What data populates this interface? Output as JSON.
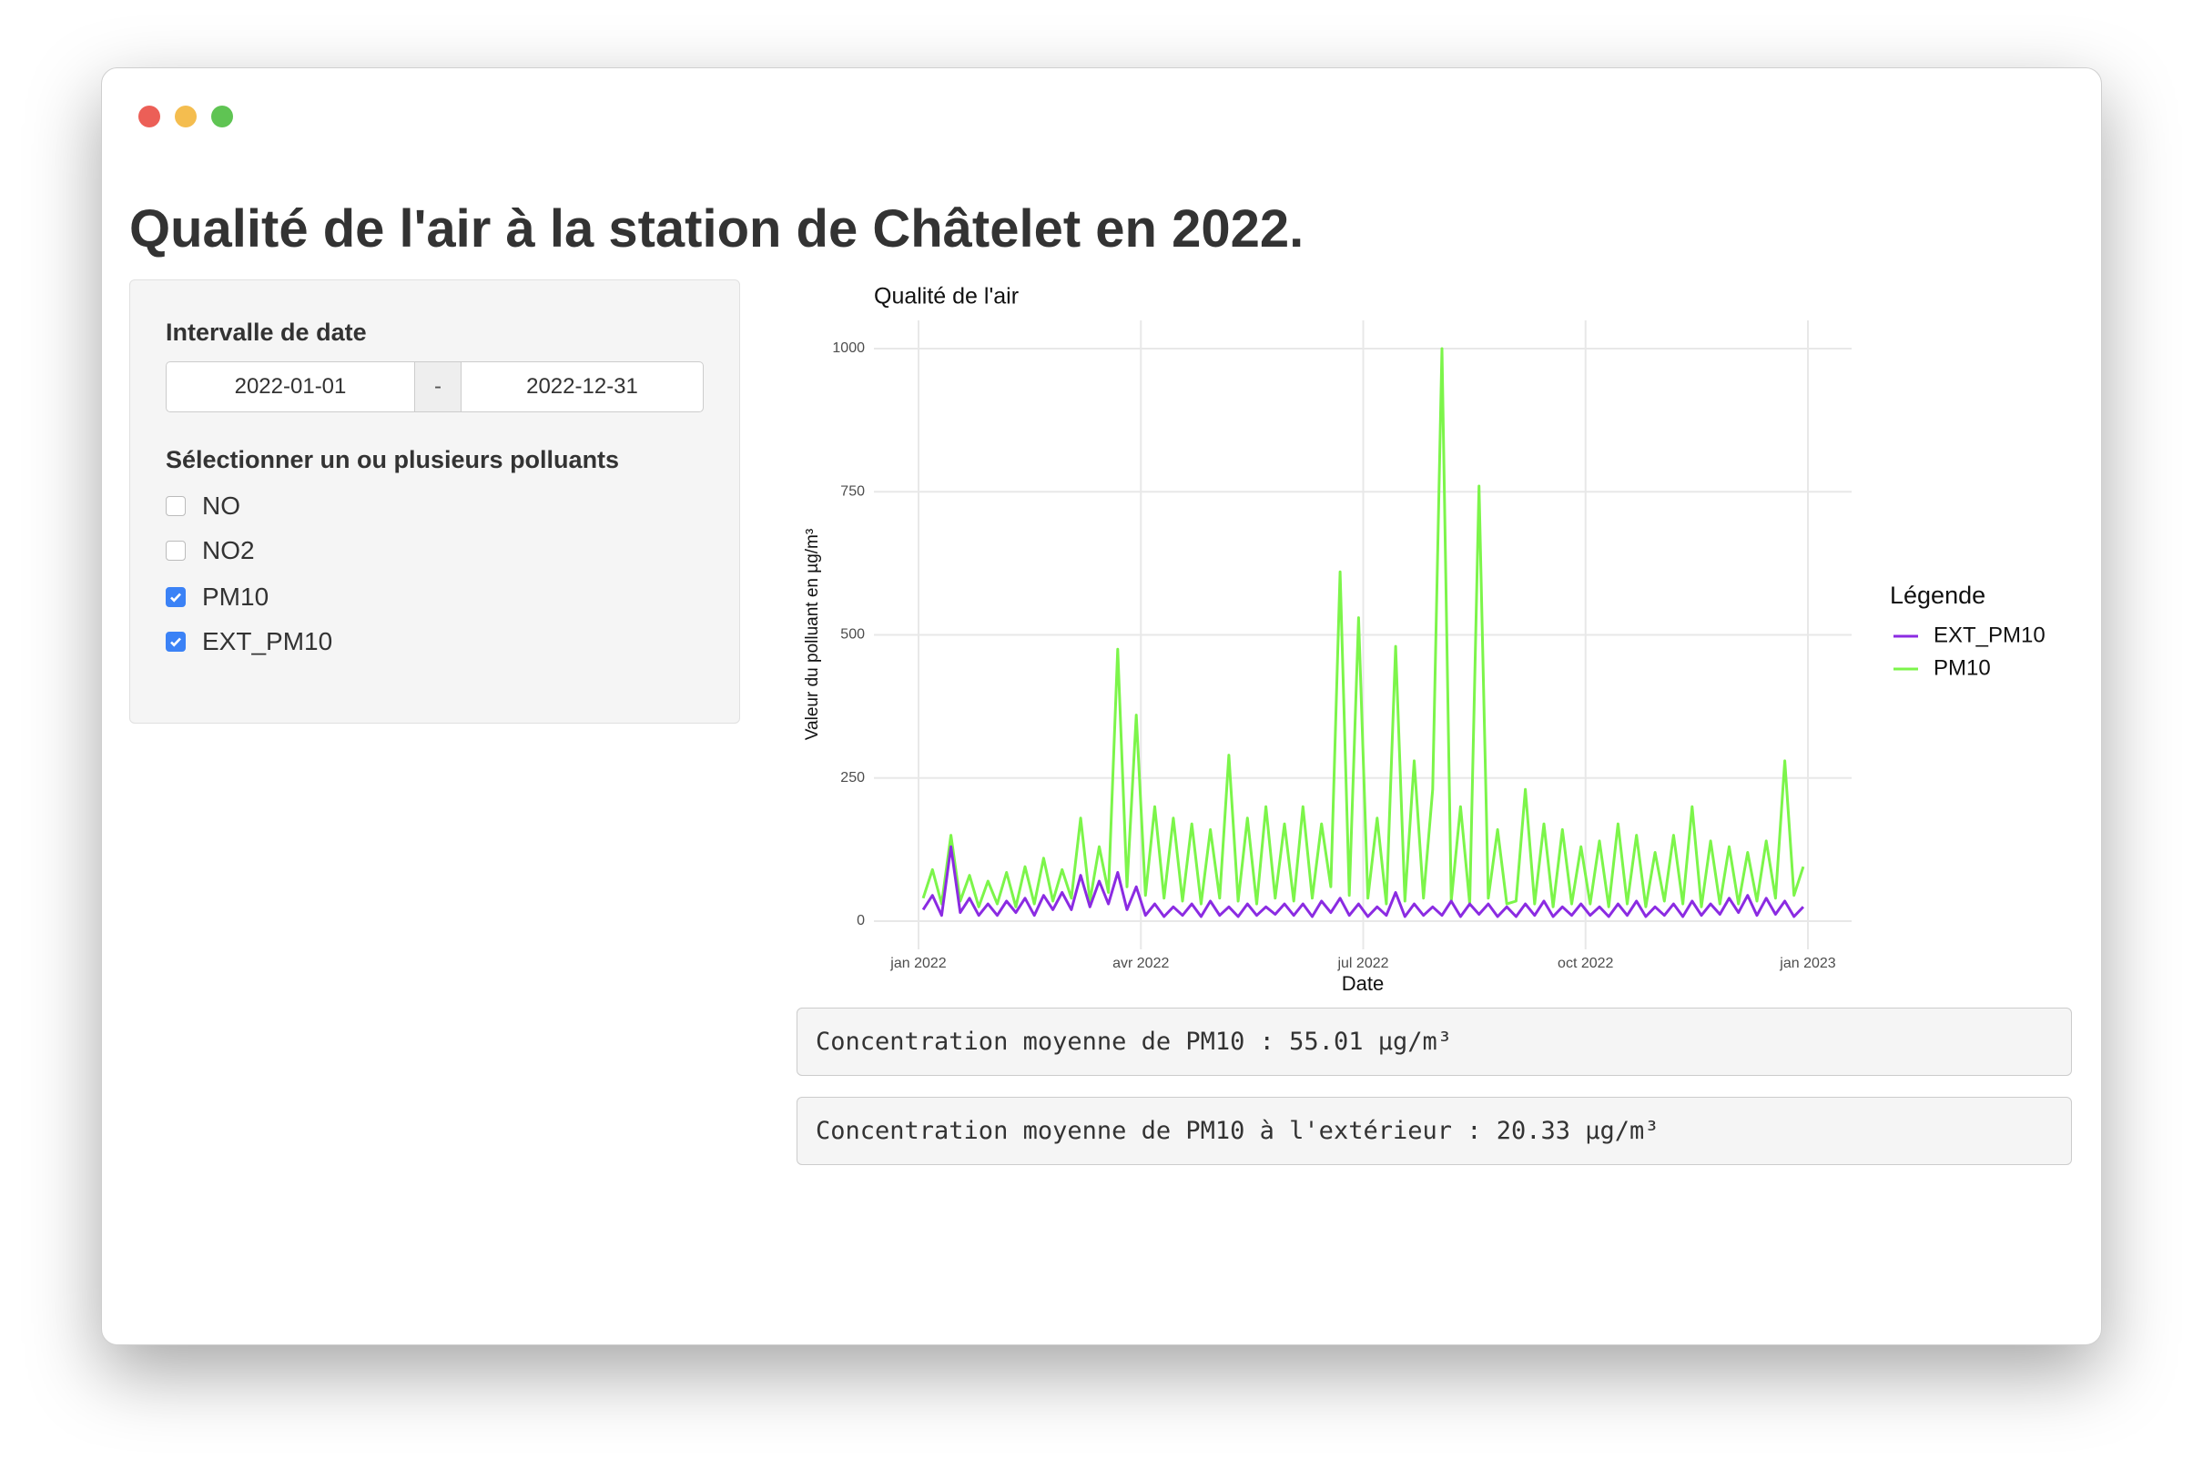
{
  "header": {
    "title": "Qualité de l'air à la station de Châtelet en 2022."
  },
  "sidebar": {
    "date_range": {
      "label": "Intervalle de date",
      "start": "2022-01-01",
      "separator": "-",
      "end": "2022-12-31"
    },
    "pollutants": {
      "label": "Sélectionner un ou plusieurs polluants",
      "options": [
        {
          "label": "NO",
          "checked": false
        },
        {
          "label": "NO2",
          "checked": false
        },
        {
          "label": "PM10",
          "checked": true
        },
        {
          "label": "EXT_PM10",
          "checked": true
        }
      ]
    }
  },
  "chart_data": {
    "type": "line",
    "title": "Qualité de l'air",
    "x_label": "Date",
    "y_label": "Valeur du polluant en µg/m³",
    "legend_title": "Légende",
    "legend_position": "right",
    "grid": true,
    "x": [
      "2022-01",
      "2022-01",
      "2022-01",
      "2022-01",
      "2022-01",
      "2022-01",
      "2022-01",
      "2022-01",
      "2022-02",
      "2022-02",
      "2022-02",
      "2022-02",
      "2022-02",
      "2022-02",
      "2022-02",
      "2022-02",
      "2022-03",
      "2022-03",
      "2022-03",
      "2022-03",
      "2022-03",
      "2022-03",
      "2022-03",
      "2022-03",
      "2022-04",
      "2022-04",
      "2022-04",
      "2022-04",
      "2022-04",
      "2022-04",
      "2022-04",
      "2022-04",
      "2022-05",
      "2022-05",
      "2022-05",
      "2022-05",
      "2022-05",
      "2022-05",
      "2022-05",
      "2022-05",
      "2022-06",
      "2022-06",
      "2022-06",
      "2022-06",
      "2022-06",
      "2022-06",
      "2022-06",
      "2022-06",
      "2022-07",
      "2022-07",
      "2022-07",
      "2022-07",
      "2022-07",
      "2022-07",
      "2022-07",
      "2022-07",
      "2022-08",
      "2022-08",
      "2022-08",
      "2022-08",
      "2022-08",
      "2022-08",
      "2022-08",
      "2022-08",
      "2022-09",
      "2022-09",
      "2022-09",
      "2022-09",
      "2022-09",
      "2022-09",
      "2022-09",
      "2022-09",
      "2022-10",
      "2022-10",
      "2022-10",
      "2022-10",
      "2022-10",
      "2022-10",
      "2022-10",
      "2022-10",
      "2022-11",
      "2022-11",
      "2022-11",
      "2022-11",
      "2022-11",
      "2022-11",
      "2022-11",
      "2022-11",
      "2022-12",
      "2022-12",
      "2022-12",
      "2022-12",
      "2022-12",
      "2022-12",
      "2022-12",
      "2022-12"
    ],
    "series": [
      {
        "name": "EXT_PM10",
        "color": "#8b2be2",
        "values": [
          20,
          45,
          10,
          130,
          15,
          40,
          10,
          30,
          10,
          35,
          15,
          40,
          10,
          45,
          20,
          50,
          20,
          80,
          25,
          70,
          30,
          85,
          20,
          60,
          10,
          30,
          8,
          25,
          10,
          30,
          8,
          35,
          10,
          25,
          8,
          30,
          10,
          25,
          12,
          30,
          10,
          30,
          8,
          35,
          15,
          40,
          10,
          30,
          8,
          25,
          10,
          50,
          8,
          30,
          10,
          25,
          10,
          35,
          8,
          30,
          12,
          30,
          8,
          25,
          8,
          30,
          10,
          35,
          8,
          25,
          10,
          30,
          10,
          25,
          8,
          30,
          10,
          35,
          8,
          25,
          10,
          30,
          8,
          35,
          10,
          30,
          12,
          40,
          15,
          45,
          10,
          40,
          12,
          35,
          8,
          25
        ]
      },
      {
        "name": "PM10",
        "color": "#7cf54a",
        "values": [
          40,
          90,
          30,
          150,
          35,
          80,
          25,
          70,
          30,
          85,
          25,
          95,
          30,
          110,
          35,
          90,
          40,
          180,
          35,
          130,
          50,
          475,
          60,
          360,
          45,
          200,
          40,
          180,
          35,
          170,
          30,
          160,
          40,
          290,
          35,
          180,
          30,
          200,
          40,
          170,
          35,
          200,
          40,
          170,
          60,
          610,
          45,
          530,
          40,
          180,
          30,
          480,
          35,
          280,
          40,
          230,
          1000,
          35,
          200,
          30,
          760,
          40,
          160,
          30,
          35,
          230,
          30,
          170,
          25,
          160,
          30,
          130,
          30,
          140,
          25,
          170,
          30,
          150,
          25,
          120,
          35,
          150,
          30,
          200,
          25,
          140,
          30,
          130,
          30,
          120,
          35,
          140,
          40,
          280,
          45,
          95
        ]
      }
    ],
    "xlim": [
      "2022-01",
      "2023-01"
    ],
    "xticks": [
      {
        "value": "2022-01",
        "label": "jan 2022"
      },
      {
        "value": "2022-04",
        "label": "avr 2022"
      },
      {
        "value": "2022-07",
        "label": "jul 2022"
      },
      {
        "value": "2022-10",
        "label": "oct 2022"
      },
      {
        "value": "2023-01",
        "label": "jan 2023"
      }
    ],
    "ylim": [
      0,
      1000
    ],
    "yticks": [
      0,
      250,
      500,
      750,
      1000
    ]
  },
  "outputs": [
    "Concentration moyenne de PM10 : 55.01 µg/m³",
    "Concentration moyenne de PM10 à l'extérieur : 20.33 µg/m³"
  ]
}
